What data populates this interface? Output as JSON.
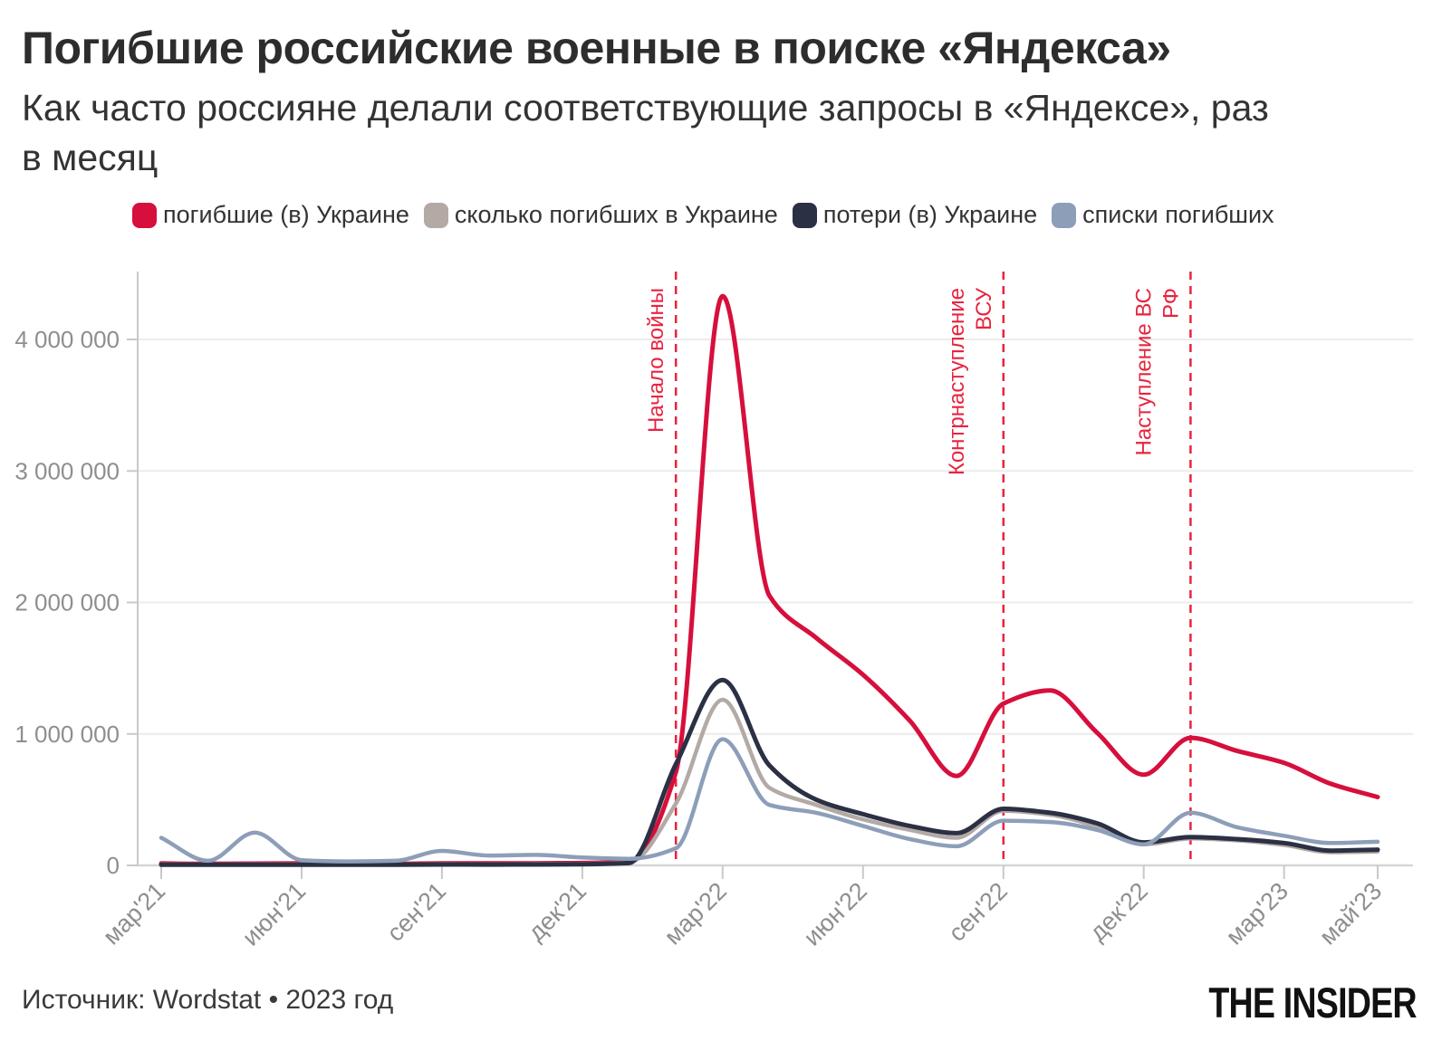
{
  "title": "Погибшие российские военные в поиске «Яндекса»",
  "subtitle_line1": "Как часто россияне делали соответствующие запросы в «Яндексе», раз",
  "subtitle_line2": "в месяц",
  "source": "Источник: Wordstat • 2023 год",
  "logo": "THE INSIDER",
  "colors": {
    "accent_red": "#d60f3c",
    "taupe": "#b3a9a5",
    "navy": "#2b3044",
    "blue_gray": "#8d9eb8",
    "grid": "#ececec",
    "baseline": "#d6d6d6",
    "axis": "#c9c9c9",
    "tick_label": "#8e8e8e",
    "annotation": "#e8243f"
  },
  "legend": [
    {
      "label": "погибшие (в) Украине",
      "color": "#d60f3c"
    },
    {
      "label": "сколько погибших в Украине",
      "color": "#b3a9a5"
    },
    {
      "label": "потери (в) Украине",
      "color": "#2b3044"
    },
    {
      "label": "списки погибших",
      "color": "#8d9eb8"
    }
  ],
  "chart_data": {
    "type": "line",
    "x": [
      "мар'21",
      "апр'21",
      "май'21",
      "июн'21",
      "июл'21",
      "авг'21",
      "сен'21",
      "окт'21",
      "ноя'21",
      "дек'21",
      "янв'22",
      "фев'22",
      "мар'22",
      "апр'22",
      "май'22",
      "июн'22",
      "июл'22",
      "авг'22",
      "сен'22",
      "окт'22",
      "ноя'22",
      "дек'22",
      "янв'23",
      "фев'23",
      "мар'23",
      "апр'23",
      "май'23"
    ],
    "x_tick_indices": [
      0,
      3,
      6,
      9,
      12,
      15,
      18,
      21,
      24,
      26
    ],
    "x_tick_labels": [
      "мар'21",
      "июн'21",
      "сен'21",
      "дек'21",
      "мар'22",
      "июн'22",
      "сен'22",
      "дек'22",
      "мар'23",
      "май'23"
    ],
    "ylabel": "",
    "xlabel": "",
    "ylim": [
      0,
      4350000
    ],
    "y_ticks": [
      {
        "value": 0,
        "label": "0"
      },
      {
        "value": 1000000,
        "label": "1 000 000"
      },
      {
        "value": 2000000,
        "label": "2 000 000"
      },
      {
        "value": 3000000,
        "label": "3 000 000"
      },
      {
        "value": 4000000,
        "label": "4 000 000"
      }
    ],
    "grid": "horizontal",
    "legend_position": "top",
    "series": [
      {
        "name": "погибшие (в) Украине",
        "color": "#d60f3c",
        "width": 5,
        "values": [
          15000,
          12000,
          14000,
          15000,
          12000,
          12000,
          16000,
          15000,
          16000,
          18000,
          28000,
          710000,
          4330000,
          2050000,
          1730000,
          1450000,
          1100000,
          680000,
          1230000,
          1330000,
          1010000,
          690000,
          970000,
          870000,
          780000,
          620000,
          520000
        ]
      },
      {
        "name": "сколько погибших в Украине",
        "color": "#b3a9a5",
        "width": 4.5,
        "values": [
          8000,
          7000,
          8000,
          8000,
          7000,
          7000,
          10000,
          9000,
          10000,
          12000,
          22000,
          470000,
          1260000,
          590000,
          460000,
          350000,
          270000,
          210000,
          415000,
          385000,
          295000,
          160000,
          205000,
          190000,
          155000,
          100000,
          105000
        ]
      },
      {
        "name": "потери (в) Украине",
        "color": "#2b3044",
        "width": 5,
        "values": [
          5000,
          5000,
          5000,
          5000,
          5000,
          5000,
          7000,
          6000,
          7000,
          9000,
          18000,
          770000,
          1410000,
          760000,
          500000,
          390000,
          300000,
          245000,
          430000,
          400000,
          320000,
          175000,
          215000,
          200000,
          170000,
          112000,
          120000
        ]
      },
      {
        "name": "списки погибших",
        "color": "#8d9eb8",
        "width": 4.5,
        "values": [
          210000,
          35000,
          250000,
          40000,
          30000,
          35000,
          110000,
          75000,
          80000,
          60000,
          50000,
          130000,
          960000,
          460000,
          400000,
          300000,
          200000,
          145000,
          340000,
          330000,
          270000,
          160000,
          400000,
          290000,
          225000,
          170000,
          180000
        ]
      }
    ],
    "annotations": [
      {
        "lines": [
          "Начало войны"
        ],
        "month_index": 11
      },
      {
        "lines": [
          "Контрнаступление",
          "ВСУ"
        ],
        "month_index": 18
      },
      {
        "lines": [
          "Наступление ВС",
          "РФ"
        ],
        "month_index": 22
      }
    ]
  }
}
